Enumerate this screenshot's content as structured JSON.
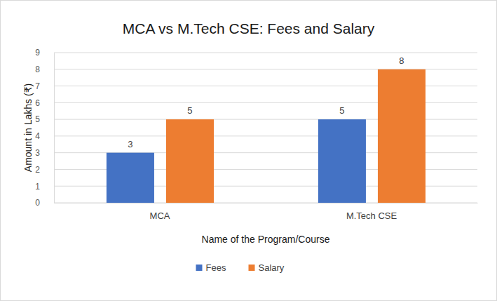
{
  "chart_data": {
    "type": "bar",
    "title": "MCA vs M.Tech CSE: Fees and Salary",
    "x_label": "Name of the Program/Course",
    "y_label": "Amount in Lakhs (₹)",
    "categories": [
      "MCA",
      "M.Tech CSE"
    ],
    "series": [
      {
        "name": "Fees",
        "color": "#4472c4",
        "values": [
          3,
          5
        ]
      },
      {
        "name": "Salary",
        "color": "#ed7d31",
        "values": [
          5,
          8
        ]
      }
    ],
    "ylim": [
      0,
      9
    ],
    "yticks": [
      0,
      1,
      2,
      3,
      4,
      5,
      6,
      7,
      8,
      9
    ],
    "grid": true,
    "legend": "bottom",
    "data_labels": true
  }
}
